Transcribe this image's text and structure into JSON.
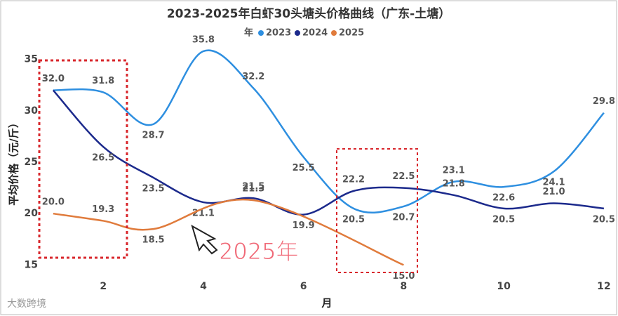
{
  "chart_data": {
    "type": "line",
    "title": "2023-2025年白虾30头塘头价格曲线（广东-土塘）",
    "legend_title": "年",
    "x_label": "月",
    "y_label": "平均价格（元/斤）",
    "x": [
      1,
      2,
      3,
      4,
      5,
      6,
      7,
      8,
      9,
      10,
      11,
      12
    ],
    "xlim": [
      0.75,
      12.1
    ],
    "xticks": [
      2,
      4,
      6,
      8,
      10,
      12
    ],
    "ylim": [
      14,
      36
    ],
    "yticks": [
      15,
      20,
      25,
      30,
      35
    ],
    "series": [
      {
        "name": "2023",
        "color": "#2e8fe0",
        "values": [
          32.0,
          31.8,
          28.7,
          35.8,
          32.2,
          25.5,
          20.5,
          20.7,
          23.1,
          22.6,
          24.1,
          29.8
        ],
        "value_labels": [
          "32.0",
          "31.8",
          "28.7",
          "35.8",
          "32.2",
          "25.5",
          "20.5",
          "20.7",
          "23.1",
          "22.6",
          "24.1",
          "29.8"
        ]
      },
      {
        "name": "2024",
        "color": "#1c2a8c",
        "values": [
          32.0,
          26.5,
          23.5,
          21.1,
          21.5,
          19.9,
          22.2,
          22.5,
          21.8,
          20.5,
          21.0,
          20.5
        ],
        "value_labels": [
          "32.0",
          "26.5",
          "23.5",
          "21.1",
          "21.5",
          "19.9",
          "22.2",
          "22.5",
          "21.8",
          "20.5",
          "21.0",
          "20.5"
        ]
      },
      {
        "name": "2025",
        "color": "#e07b3c",
        "x": [
          1,
          2,
          3,
          5,
          8
        ],
        "values": [
          20.0,
          19.3,
          18.5,
          21.3,
          15.0
        ],
        "value_labels": [
          "20.0",
          "19.3",
          "18.5",
          "21.3",
          "15.0"
        ]
      }
    ],
    "annotation": "2025年",
    "watermark": "大数跨境"
  }
}
